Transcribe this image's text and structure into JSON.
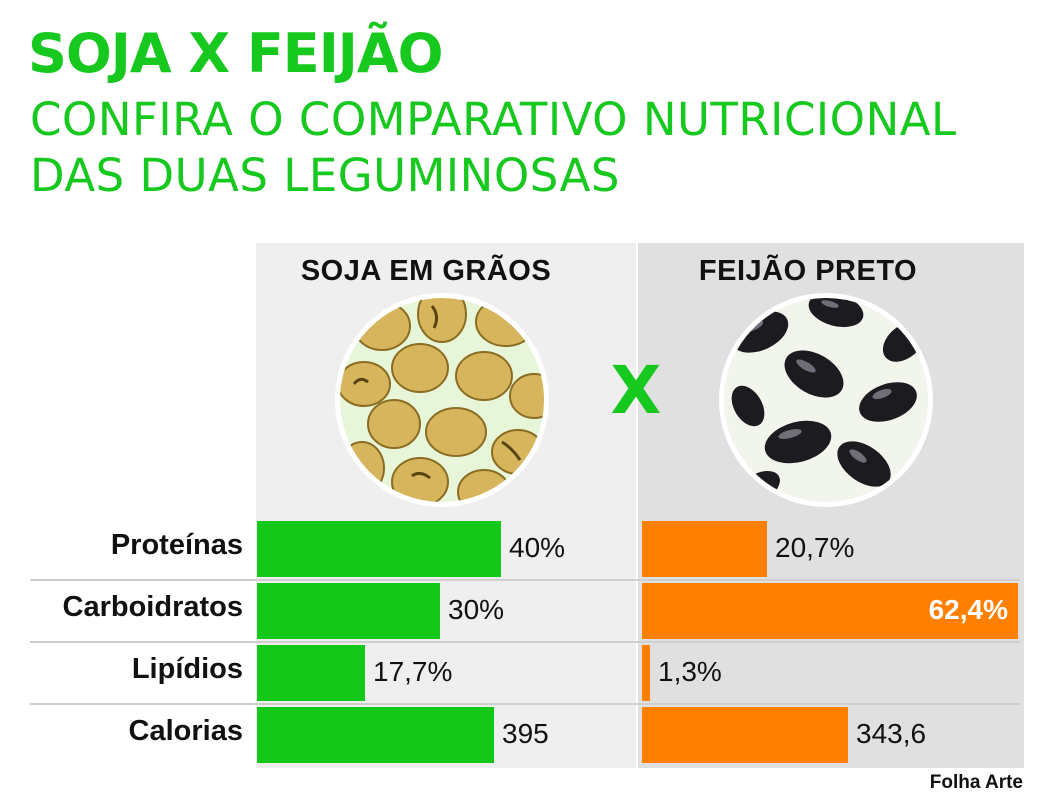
{
  "header": {
    "title": "SOJA X FEIJÃO",
    "subtitle": "CONFIRA O COMPARATIVO NUTRICIONAL DAS DUAS LEGUMINOSAS"
  },
  "columns": {
    "left": "SOJA EM GRÃOS",
    "right": "FEIJÃO PRETO",
    "versus": "X"
  },
  "credit": "Folha Arte",
  "chart_data": {
    "type": "bar",
    "orientation": "horizontal",
    "title": "SOJA X FEIJÃO",
    "categories": [
      "Proteínas",
      "Carboidratos",
      "Lipídios",
      "Calorias"
    ],
    "series": [
      {
        "name": "SOJA EM GRÃOS",
        "color": "#13c816",
        "values": [
          40,
          30,
          17.7,
          395
        ],
        "labels": [
          "40%",
          "30%",
          "17,7%",
          "395"
        ]
      },
      {
        "name": "FEIJÃO PRETO",
        "color": "#ff7f00",
        "values": [
          20.7,
          62.4,
          1.3,
          343.6
        ],
        "labels": [
          "20,7%",
          "62,4%",
          "1,3%",
          "343,6"
        ]
      }
    ],
    "grid": false,
    "legend": "none"
  }
}
